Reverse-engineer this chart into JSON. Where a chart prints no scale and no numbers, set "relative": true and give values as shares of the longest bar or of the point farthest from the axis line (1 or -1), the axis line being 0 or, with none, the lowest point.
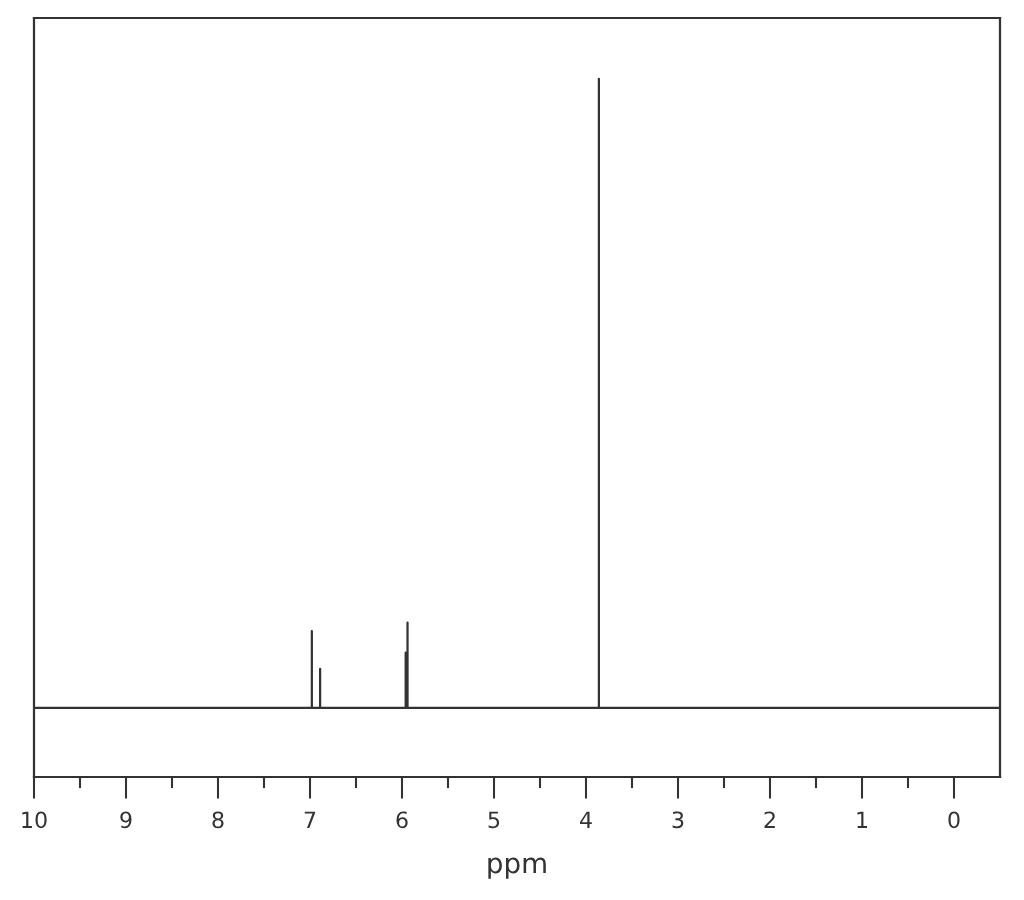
{
  "chart_data": {
    "type": "line",
    "relative": true,
    "xlabel": "ppm",
    "tick_labels": "x",
    "xlim": [
      10,
      -0.5
    ],
    "xticks": [
      10,
      {
        "value": 9.5,
        "label": null
      },
      9,
      {
        "value": 8.5,
        "label": null
      },
      8,
      {
        "value": 7.5,
        "label": null
      },
      7,
      {
        "value": 6.5,
        "label": null
      },
      6,
      {
        "value": 5.5,
        "label": null
      },
      5,
      {
        "value": 4.5,
        "label": null
      },
      4,
      {
        "value": 3.5,
        "label": null
      },
      3,
      {
        "value": 2.5,
        "label": null
      },
      2,
      {
        "value": 1.5,
        "label": null
      },
      1,
      {
        "value": 0.5,
        "label": null
      },
      0
    ],
    "series": [
      {
        "color": "#333333",
        "line_style": "solid",
        "x": [
          10,
          6.98,
          6.98,
          6.98,
          6.89,
          6.89,
          6.89,
          5.96,
          5.96,
          5.96,
          5.94,
          5.94,
          5.94,
          3.86,
          3.86,
          3.86,
          -0.5
        ],
        "values": [
          0.099,
          0.099,
          0.209,
          0.099,
          0.099,
          0.155,
          0.099,
          0.099,
          0.178,
          0.099,
          0.099,
          0.221,
          0.099,
          0.099,
          1,
          0.099,
          0.099
        ]
      }
    ]
  }
}
